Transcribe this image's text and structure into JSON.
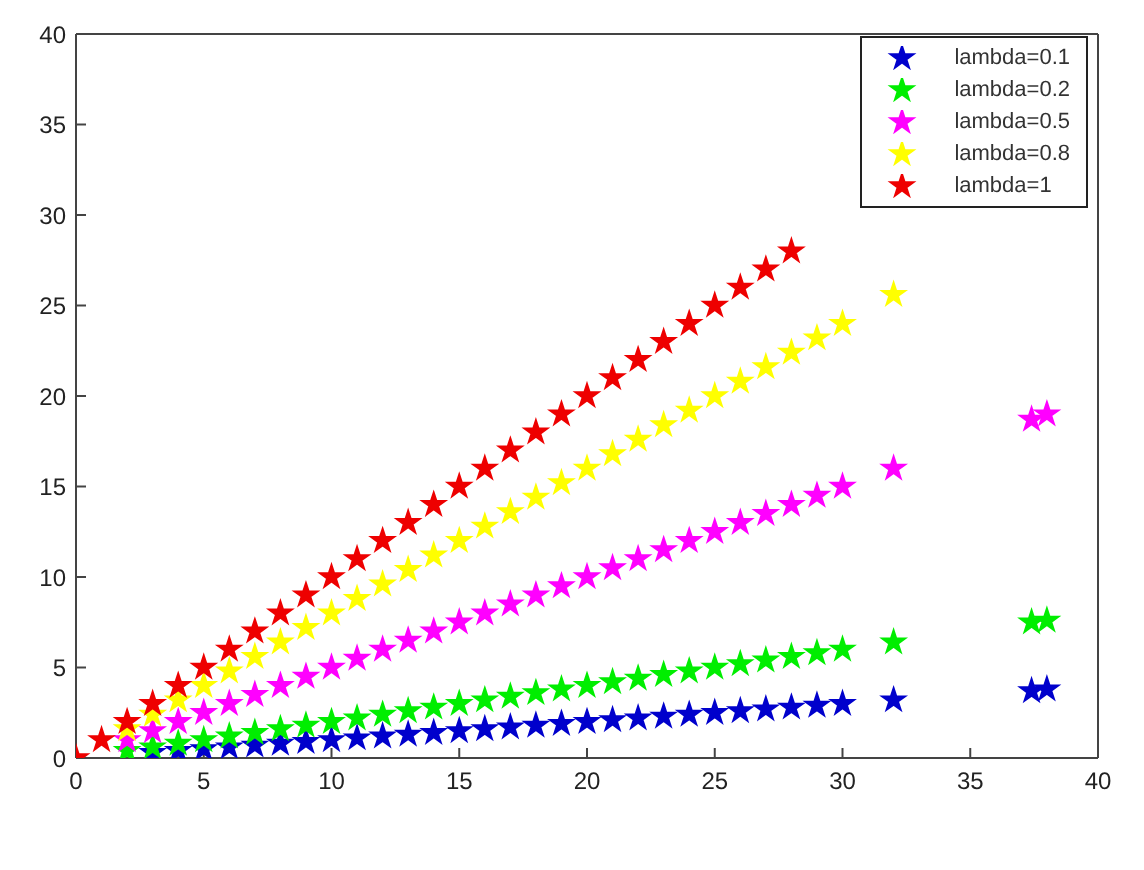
{
  "chart_data": {
    "type": "scatter",
    "marker": "star",
    "legend": "top right",
    "grid": false,
    "xlim": [
      0,
      40
    ],
    "xticks": [
      0,
      5,
      10,
      15,
      20,
      25,
      30,
      35,
      40
    ],
    "ylim": [
      0,
      40
    ],
    "yticks": [
      0,
      5,
      10,
      15,
      20,
      25,
      30,
      35,
      40
    ],
    "series": [
      {
        "name": "lambda=0.1",
        "color": "#0000cc",
        "x": [
          3,
          4,
          5,
          6,
          7,
          8,
          9,
          10,
          11,
          12,
          13,
          14,
          15,
          16,
          17,
          18,
          19,
          20,
          21,
          22,
          23,
          24,
          25,
          26,
          27,
          28,
          29,
          30,
          32,
          37.4,
          38
        ],
        "values": [
          0.3,
          0.4,
          0.5,
          0.6,
          0.7,
          0.8,
          0.9,
          1,
          1.1,
          1.2,
          1.3,
          1.4,
          1.5,
          1.6,
          1.7,
          1.8,
          1.9,
          2,
          2.1,
          2.2,
          2.3,
          2.4,
          2.5,
          2.6,
          2.7,
          2.8,
          2.9,
          3,
          3.2,
          3.7,
          3.8
        ]
      },
      {
        "name": "lambda=0.2",
        "color": "#00ee00",
        "x": [
          2,
          3,
          4,
          5,
          6,
          7,
          8,
          9,
          10,
          11,
          12,
          13,
          14,
          15,
          16,
          17,
          18,
          19,
          20,
          21,
          22,
          23,
          24,
          25,
          26,
          27,
          28,
          29,
          30,
          32,
          37.4,
          38
        ],
        "values": [
          0.4,
          0.6,
          0.8,
          1,
          1.2,
          1.4,
          1.6,
          1.8,
          2,
          2.2,
          2.4,
          2.6,
          2.8,
          3,
          3.2,
          3.4,
          3.6,
          3.8,
          4,
          4.2,
          4.4,
          4.6,
          4.8,
          5,
          5.2,
          5.4,
          5.6,
          5.8,
          6,
          6.4,
          7.5,
          7.6
        ]
      },
      {
        "name": "lambda=0.5",
        "color": "#ff00ff",
        "x": [
          2,
          3,
          4,
          5,
          6,
          7,
          8,
          9,
          10,
          11,
          12,
          13,
          14,
          15,
          16,
          17,
          18,
          19,
          20,
          21,
          22,
          23,
          24,
          25,
          26,
          27,
          28,
          29,
          30,
          32,
          37.4,
          38
        ],
        "values": [
          1,
          1.5,
          2,
          2.5,
          3,
          3.5,
          4,
          4.5,
          5,
          5.5,
          6,
          6.5,
          7,
          7.5,
          8,
          8.5,
          9,
          9.5,
          10,
          10.5,
          11,
          11.5,
          12,
          12.5,
          13,
          13.5,
          14,
          14.5,
          15,
          16,
          18.7,
          19
        ]
      },
      {
        "name": "lambda=0.8",
        "color": "#ffff00",
        "x": [
          2,
          3,
          4,
          5,
          6,
          7,
          8,
          9,
          10,
          11,
          12,
          13,
          14,
          15,
          16,
          17,
          18,
          19,
          20,
          21,
          22,
          23,
          24,
          25,
          26,
          27,
          28,
          29,
          30,
          32
        ],
        "values": [
          1.6,
          2.4,
          3.2,
          4,
          4.8,
          5.6,
          6.4,
          7.2,
          8,
          8.8,
          9.6,
          10.4,
          11.2,
          12,
          12.8,
          13.6,
          14.4,
          15.2,
          16,
          16.8,
          17.6,
          18.4,
          19.2,
          20,
          20.8,
          21.6,
          22.4,
          23.2,
          24,
          25.6
        ]
      },
      {
        "name": "lambda=1",
        "color": "#ee0000",
        "x": [
          0,
          1,
          2,
          3,
          4,
          5,
          6,
          7,
          8,
          9,
          10,
          11,
          12,
          13,
          14,
          15,
          16,
          17,
          18,
          19,
          20,
          21,
          22,
          23,
          24,
          25,
          26,
          27,
          28
        ],
        "values": [
          0,
          1,
          2,
          3,
          4,
          5,
          6,
          7,
          8,
          9,
          10,
          11,
          12,
          13,
          14,
          15,
          16,
          17,
          18,
          19,
          20,
          21,
          22,
          23,
          24,
          25,
          26,
          27,
          28
        ]
      }
    ]
  }
}
